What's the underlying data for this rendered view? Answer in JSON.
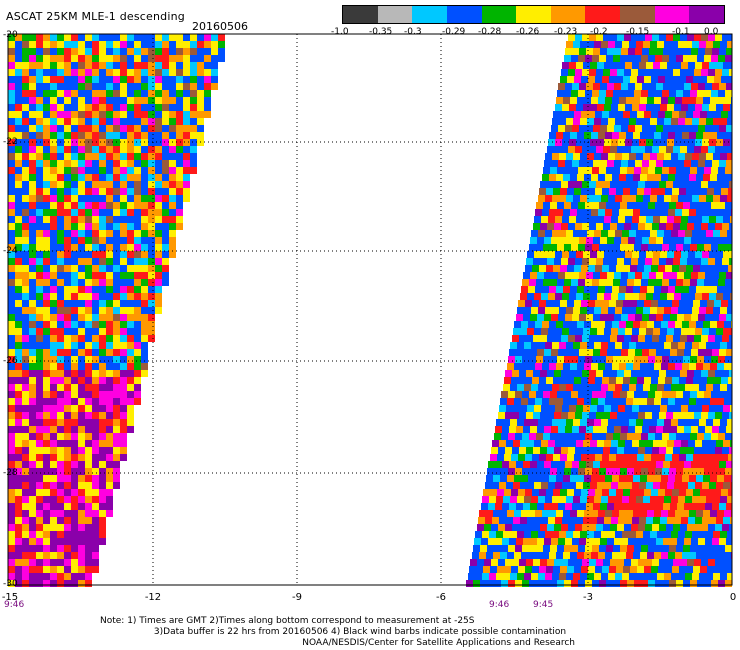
{
  "title": "ASCAT 25KM MLE-1 descending",
  "date": "20160506",
  "colorbar": {
    "labels": [
      "-1.0",
      "-0.35",
      "-0.3",
      "-0.29",
      "-0.28",
      "-0.26",
      "-0.23",
      "-0.2",
      "-0.15",
      "-0.1",
      "0.0"
    ],
    "colors": [
      "#3a3a3a",
      "#b8b8b8",
      "#00c8ff",
      "#0050ff",
      "#00b400",
      "#ffee00",
      "#ff9900",
      "#ff1a1a",
      "#9b5a3a",
      "#ff00e0",
      "#8a00aa"
    ]
  },
  "axes": {
    "x_ticks": [
      "-15",
      "-12",
      "-9",
      "-6",
      "-3",
      "0"
    ],
    "y_ticks": [
      "-20",
      "-22",
      "-24",
      "-26",
      "-28",
      "-30"
    ]
  },
  "times": [
    "9:46",
    "9:46",
    "9:45"
  ],
  "notes": [
    "Note: 1) Times are GMT 2)Times along bottom correspond to measurement at -25S",
    "3)Data buffer is 22 hrs from 20160506 4) Black wind barbs indicate possible contamination",
    "NOAA/NESDIS/Center for Satellite Applications and Research"
  ]
}
